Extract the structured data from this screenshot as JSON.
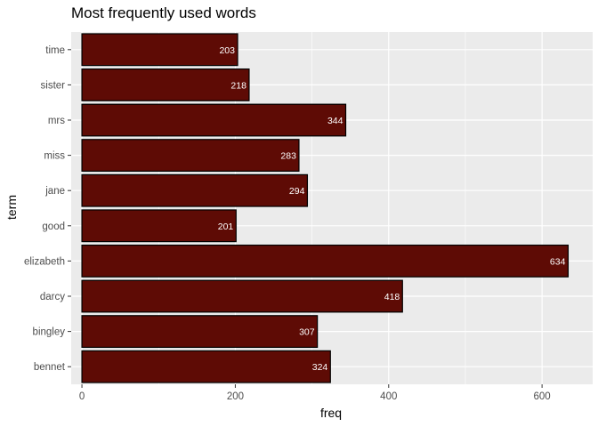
{
  "chart_data": {
    "type": "bar",
    "orientation": "horizontal",
    "title": "Most frequently used words",
    "xlabel": "freq",
    "ylabel": "term",
    "categories": [
      "time",
      "sister",
      "mrs",
      "miss",
      "jane",
      "good",
      "elizabeth",
      "darcy",
      "bingley",
      "bennet"
    ],
    "values": [
      203,
      218,
      344,
      283,
      294,
      201,
      634,
      418,
      307,
      324
    ],
    "xticks": [
      0,
      200,
      400,
      600
    ],
    "xlim": [
      -14,
      666
    ],
    "grid": true,
    "legend": "none",
    "colors": {
      "bar_fill": "#5e0b05",
      "bar_stroke": "#000000",
      "panel_bg": "#ebebeb",
      "grid_major": "#ffffff",
      "label_text": "#ffffff"
    }
  }
}
